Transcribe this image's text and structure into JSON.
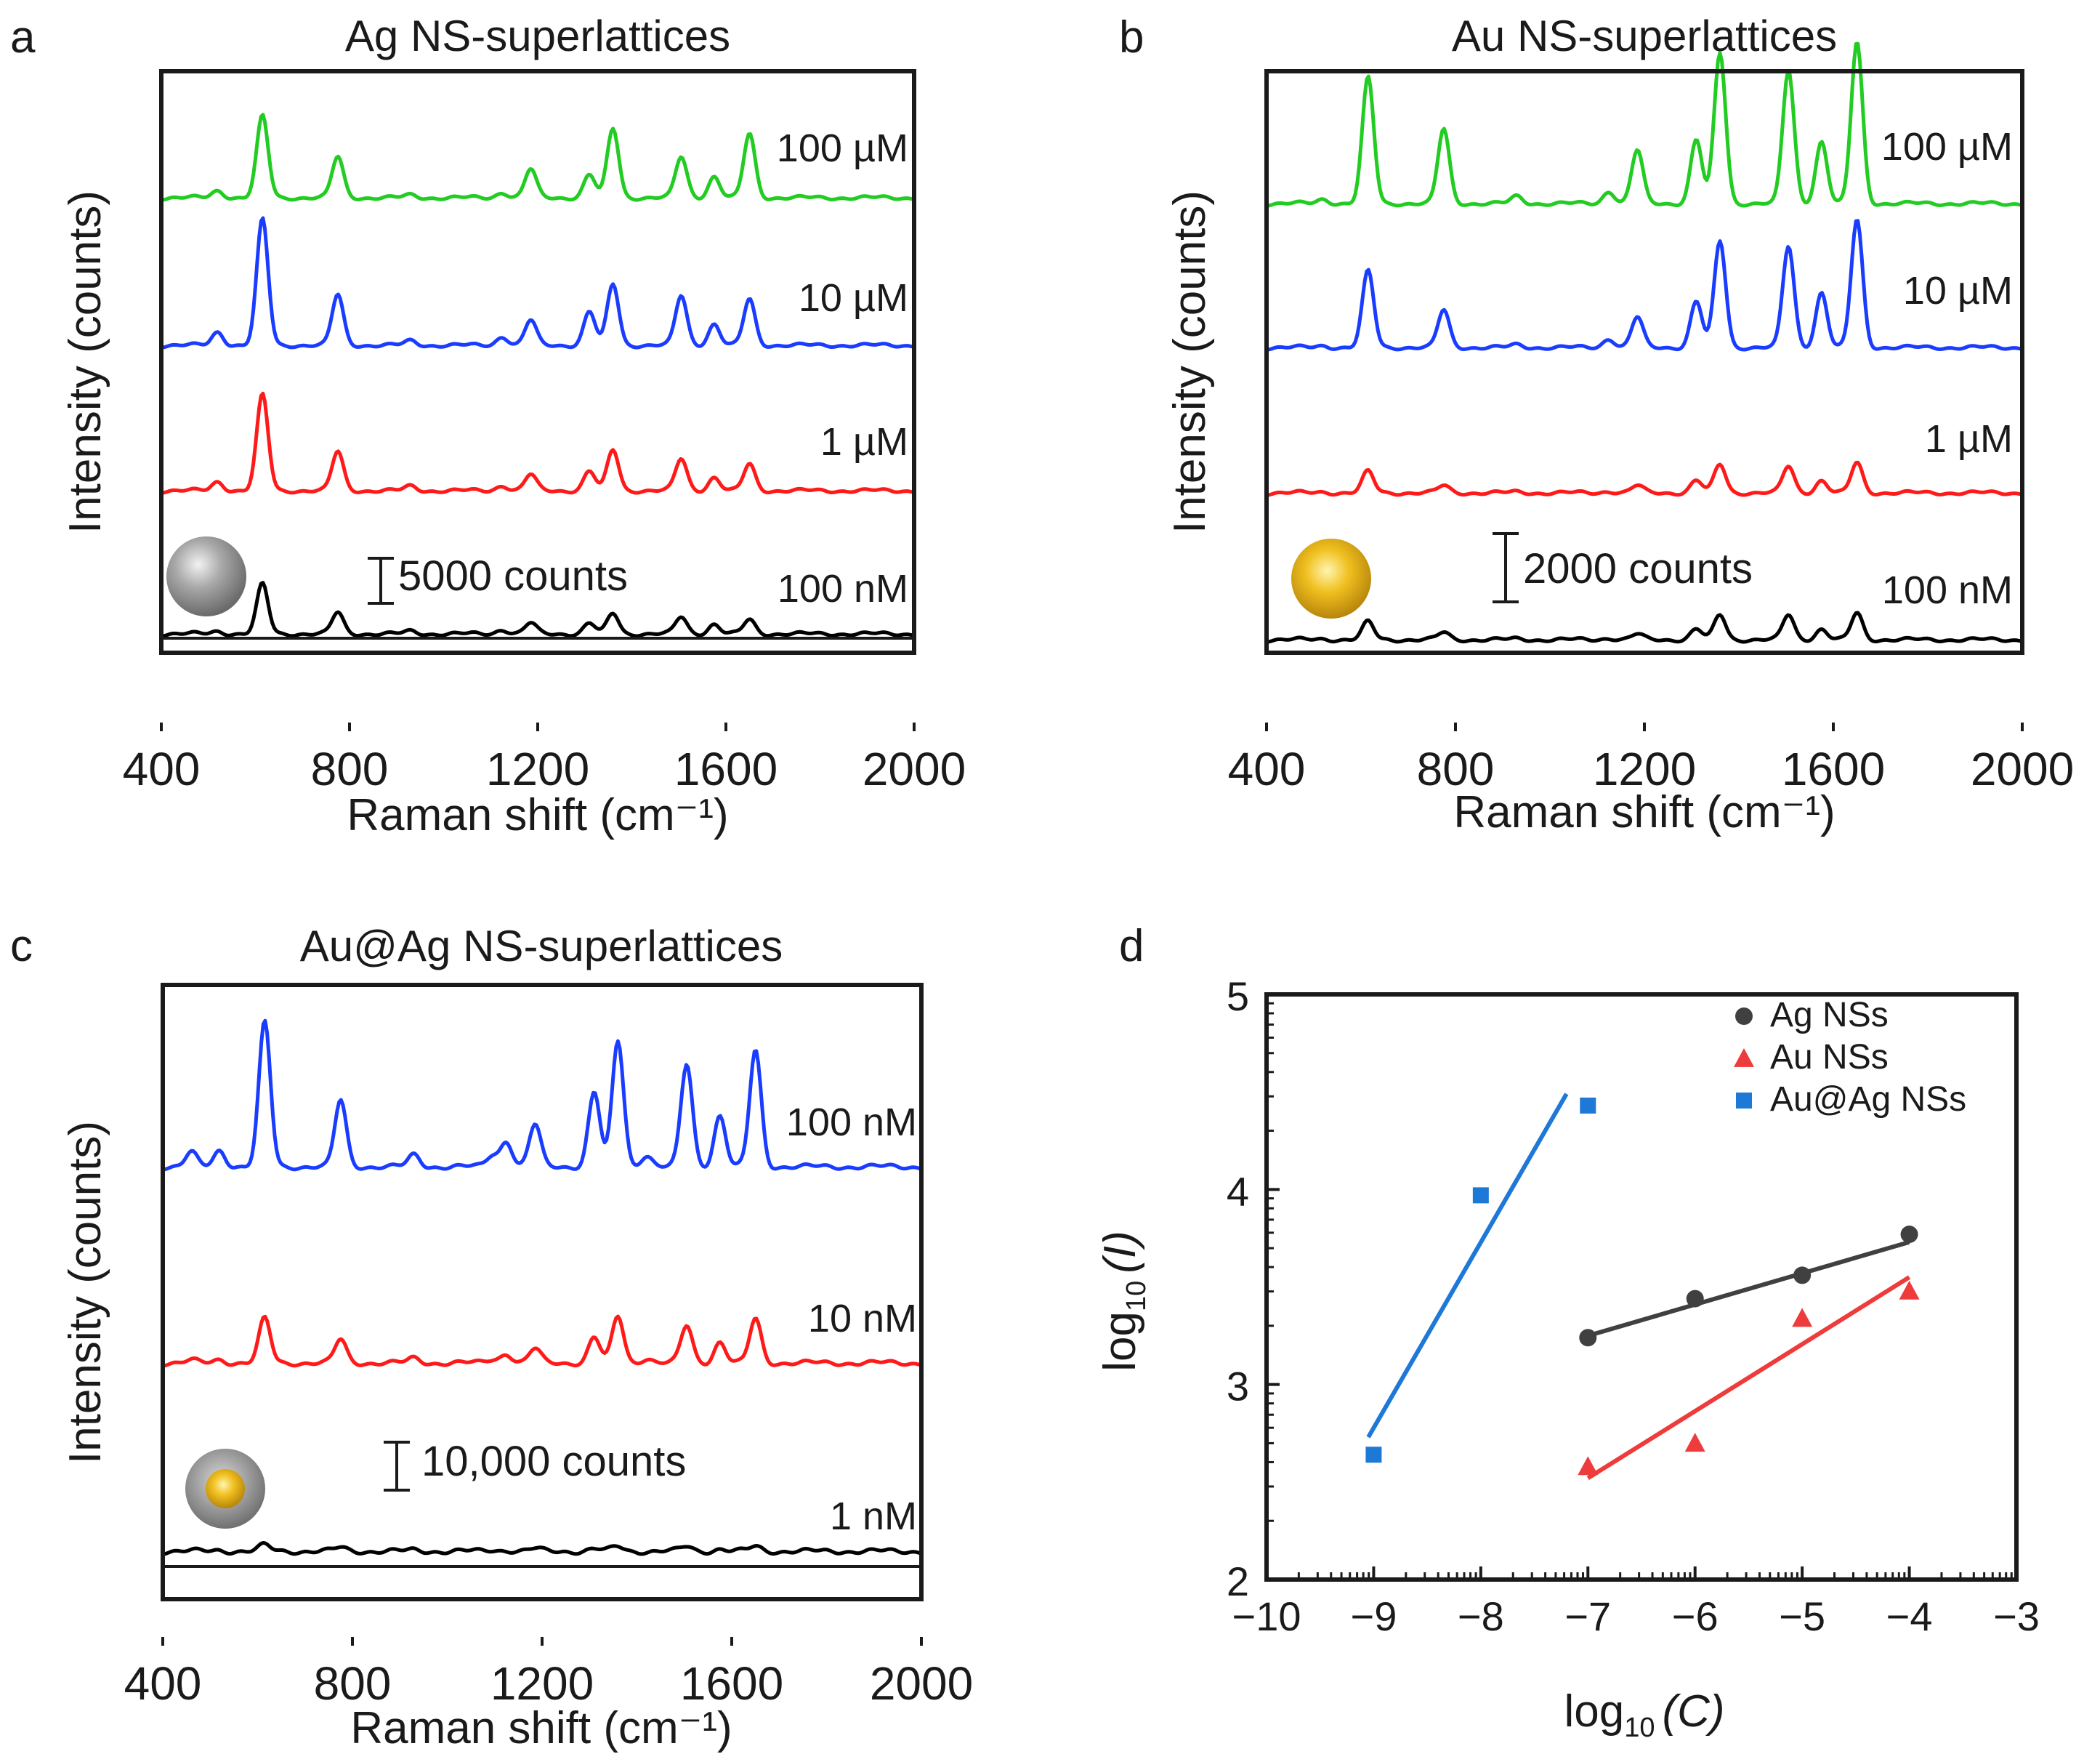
{
  "figure": {
    "panel_letters": [
      "a",
      "b",
      "c",
      "d"
    ]
  },
  "chart_data": [
    {
      "panel": "a",
      "type": "line",
      "title": "Ag NS-superlattices",
      "xlabel": "Raman shift (cm⁻¹)",
      "ylabel": "Intensity (counts)",
      "xlim": [
        400,
        2000
      ],
      "x_ticks": [
        "400",
        "800",
        "1200",
        "1600",
        "2000"
      ],
      "scale_bar": "5000 counts",
      "particle_icon": "silver-sphere",
      "peak_positions": [
        520,
        615,
        775,
        930,
        1125,
        1185,
        1310,
        1360,
        1505,
        1575,
        1650
      ],
      "series": [
        {
          "name": "100 nM",
          "color": "#000000",
          "peak_heights": [
            0.03,
            0.56,
            0.24,
            0.03,
            0.05,
            0.12,
            0.12,
            0.23,
            0.19,
            0.11,
            0.16
          ]
        },
        {
          "name": "1 µM",
          "color": "#ff1a1a",
          "peak_heights": [
            0.1,
            1.08,
            0.44,
            0.05,
            0.06,
            0.18,
            0.22,
            0.46,
            0.36,
            0.15,
            0.3
          ]
        },
        {
          "name": "10 µM",
          "color": "#1a3cff",
          "peak_heights": [
            0.15,
            1.42,
            0.57,
            0.05,
            0.1,
            0.28,
            0.38,
            0.69,
            0.56,
            0.24,
            0.52
          ]
        },
        {
          "name": "100 µM",
          "color": "#22cc22",
          "peak_heights": [
            0.08,
            0.92,
            0.46,
            0.03,
            0.06,
            0.32,
            0.26,
            0.78,
            0.46,
            0.24,
            0.72
          ]
        }
      ]
    },
    {
      "panel": "b",
      "type": "line",
      "title": "Au NS-superlattices",
      "xlabel": "Raman shift (cm⁻¹)",
      "ylabel": "Intensity (counts)",
      "xlim": [
        400,
        2000
      ],
      "x_ticks": [
        "400",
        "800",
        "1200",
        "1600",
        "2000"
      ],
      "scale_bar": "2000 counts",
      "particle_icon": "gold-sphere",
      "peak_positions": [
        520,
        615,
        775,
        930,
        1125,
        1185,
        1310,
        1360,
        1505,
        1575,
        1650
      ],
      "series": [
        {
          "name": "100 nM",
          "color": "#000000",
          "peak_heights": [
            0.01,
            0.2,
            0.08,
            0.01,
            0.02,
            0.06,
            0.12,
            0.28,
            0.28,
            0.12,
            0.3
          ]
        },
        {
          "name": "1 µM",
          "color": "#ff1a1a",
          "peak_heights": [
            0.01,
            0.24,
            0.08,
            0.01,
            0.02,
            0.08,
            0.14,
            0.32,
            0.3,
            0.14,
            0.34
          ]
        },
        {
          "name": "10 µM",
          "color": "#1a3cff",
          "peak_heights": [
            0.02,
            0.86,
            0.42,
            0.03,
            0.1,
            0.34,
            0.52,
            1.2,
            1.14,
            0.62,
            1.44
          ]
        },
        {
          "name": "100 µM",
          "color": "#22cc22",
          "peak_heights": [
            0.05,
            1.42,
            0.84,
            0.08,
            0.14,
            0.6,
            0.72,
            1.7,
            1.5,
            0.7,
            1.82
          ]
        }
      ]
    },
    {
      "panel": "c",
      "type": "line",
      "title": "Au@Ag NS-superlattices",
      "xlabel": "Raman shift (cm⁻¹)",
      "ylabel": "Intensity (counts)",
      "xlim": [
        400,
        2000
      ],
      "x_ticks": [
        "400",
        "800",
        "1200",
        "1600",
        "2000"
      ],
      "scale_bar": "10,000 counts",
      "particle_icon": "gold-core-silver-shell-sphere",
      "peak_positions": [
        460,
        520,
        615,
        775,
        930,
        1095,
        1125,
        1185,
        1310,
        1360,
        1420,
        1505,
        1575,
        1650
      ],
      "series": [
        {
          "name": "1 nM",
          "color": "#000000",
          "peak_heights": [
            0.0,
            0.01,
            0.05,
            0.03,
            0.01,
            0.01,
            0.01,
            0.02,
            0.02,
            0.04,
            0.0,
            0.04,
            0.02,
            0.04
          ]
        },
        {
          "name": "10 nM",
          "color": "#ff1a1a",
          "peak_heights": [
            0.02,
            0.03,
            0.38,
            0.2,
            0.04,
            0.03,
            0.08,
            0.12,
            0.22,
            0.4,
            0.04,
            0.32,
            0.18,
            0.38
          ]
        },
        {
          "name": "100 nM",
          "color": "#1a3cff",
          "peak_heights": [
            0.12,
            0.14,
            1.24,
            0.57,
            0.1,
            0.1,
            0.22,
            0.36,
            0.64,
            1.08,
            0.1,
            0.88,
            0.44,
            1.0
          ]
        }
      ]
    },
    {
      "panel": "d",
      "type": "scatter",
      "xlabel_prefix": "log",
      "xlabel_sub": "10",
      "xlabel_arg": "(C)",
      "ylabel_prefix": "log",
      "ylabel_sub": "10",
      "ylabel_arg": "(I)",
      "xlim": [
        -10,
        -3
      ],
      "ylim": [
        2,
        5
      ],
      "x_ticks": [
        -10,
        -9,
        -8,
        -7,
        -6,
        -5,
        -4,
        -3
      ],
      "y_ticks": [
        2,
        3,
        4,
        5
      ],
      "x_tick_labels": [
        "−10",
        "−9",
        "−8",
        "−7",
        "−6",
        "−5",
        "−4",
        "−3"
      ],
      "y_tick_labels": [
        "2",
        "3",
        "4",
        "5"
      ],
      "series": [
        {
          "name": "Ag NSs",
          "color": "#404040",
          "marker": "circle",
          "x": [
            -7,
            -6,
            -5,
            -4
          ],
          "y": [
            3.24,
            3.44,
            3.56,
            3.77
          ],
          "fit": {
            "x": [
              -7,
              -4
            ],
            "y": [
              3.25,
              3.73
            ]
          }
        },
        {
          "name": "Au NSs",
          "color": "#ee3b3b",
          "marker": "triangle",
          "x": [
            -7,
            -6,
            -5,
            -4
          ],
          "y": [
            2.58,
            2.7,
            3.34,
            3.48
          ],
          "fit": {
            "x": [
              -7,
              -4
            ],
            "y": [
              2.52,
              3.55
            ]
          }
        },
        {
          "name": "Au@Ag NSs",
          "color": "#1e78d8",
          "marker": "square",
          "x": [
            -9,
            -8,
            -7
          ],
          "y": [
            2.64,
            3.97,
            4.43
          ],
          "fit": {
            "x": [
              -9.05,
              -7.2
            ],
            "y": [
              2.73,
              4.49
            ]
          }
        }
      ]
    }
  ]
}
